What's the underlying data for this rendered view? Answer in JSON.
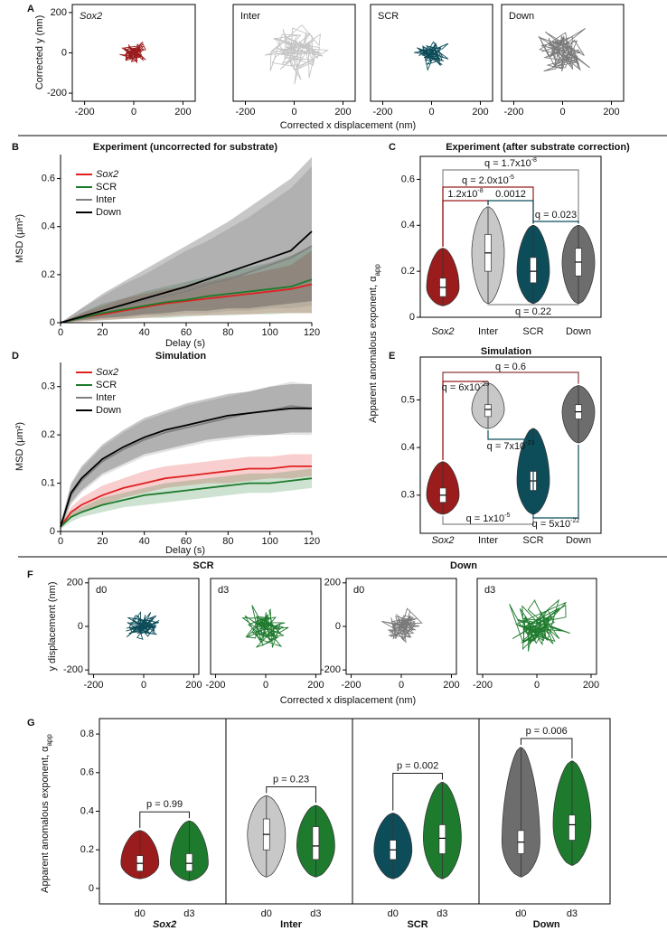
{
  "chart_data": [
    {
      "type": "trajectory",
      "panel": "A",
      "xlabel": "Corrected x displacement (nm)",
      "ylabel": "Corrected y (nm)",
      "xlim": [
        -250,
        250
      ],
      "ylim": [
        -240,
        240
      ],
      "xticks": [
        -200,
        0,
        200
      ],
      "yticks": [
        -200,
        0,
        200
      ],
      "panels": [
        {
          "label": "Sox2",
          "italic": true,
          "label_color": "#9b1c1c",
          "color": "#9b1c1c",
          "spread": 35
        },
        {
          "label": "Inter",
          "label_color": "#111111",
          "color": "#c4c4c4",
          "spread": 100
        },
        {
          "label": "SCR",
          "label_color": "#0d4d5a",
          "color": "#0d4d5a",
          "spread": 50
        },
        {
          "label": "Down",
          "label_color": "#111111",
          "color": "#7a7a7a",
          "spread": 75
        }
      ]
    },
    {
      "type": "line",
      "panel": "B",
      "title": "Experiment (uncorrected for substrate)",
      "xlabel": "Delay (s)",
      "ylabel": "MSD (μm²)",
      "xlim": [
        0,
        120
      ],
      "ylim": [
        0,
        0.7
      ],
      "xticks": [
        0,
        20,
        40,
        60,
        80,
        100,
        120
      ],
      "yticks": [
        0,
        0.2,
        0.4,
        0.6
      ],
      "x": [
        0,
        10,
        20,
        30,
        40,
        50,
        60,
        70,
        80,
        90,
        100,
        110,
        120
      ],
      "series": [
        {
          "name": "Sox2",
          "italic": true,
          "color": "#e02020",
          "values": [
            0,
            0.02,
            0.035,
            0.05,
            0.065,
            0.08,
            0.09,
            0.1,
            0.11,
            0.12,
            0.13,
            0.14,
            0.16
          ],
          "lower": [
            0,
            0.005,
            0.01,
            0.015,
            0.02,
            0.025,
            0.03,
            0.03,
            0.035,
            0.035,
            0.04,
            0.04,
            0.04
          ],
          "upper": [
            0,
            0.04,
            0.07,
            0.1,
            0.12,
            0.14,
            0.15,
            0.17,
            0.19,
            0.2,
            0.22,
            0.24,
            0.3
          ]
        },
        {
          "name": "SCR",
          "color": "#1e7a2d",
          "values": [
            0,
            0.02,
            0.04,
            0.055,
            0.07,
            0.085,
            0.095,
            0.11,
            0.12,
            0.13,
            0.14,
            0.15,
            0.18
          ],
          "lower": [
            0,
            0.005,
            0.01,
            0.015,
            0.02,
            0.02,
            0.025,
            0.03,
            0.03,
            0.035,
            0.035,
            0.04,
            0.04
          ],
          "upper": [
            0,
            0.04,
            0.08,
            0.1,
            0.13,
            0.15,
            0.17,
            0.19,
            0.21,
            0.23,
            0.25,
            0.28,
            0.32
          ]
        },
        {
          "name": "Inter",
          "color": "#808080",
          "values": [
            0,
            0.025,
            0.05,
            0.07,
            0.09,
            0.11,
            0.13,
            0.16,
            0.18,
            0.21,
            0.24,
            0.27,
            0.32
          ],
          "lower": [
            0,
            0.01,
            0.015,
            0.02,
            0.03,
            0.03,
            0.04,
            0.04,
            0.05,
            0.05,
            0.06,
            0.06,
            0.07
          ],
          "upper": [
            0,
            0.06,
            0.11,
            0.16,
            0.2,
            0.25,
            0.3,
            0.34,
            0.39,
            0.44,
            0.5,
            0.56,
            0.65
          ]
        },
        {
          "name": "Down",
          "color": "#000000",
          "values": [
            0,
            0.025,
            0.05,
            0.075,
            0.1,
            0.125,
            0.15,
            0.18,
            0.21,
            0.24,
            0.27,
            0.3,
            0.38
          ],
          "lower": [
            0,
            0.01,
            0.02,
            0.025,
            0.035,
            0.04,
            0.05,
            0.05,
            0.06,
            0.06,
            0.07,
            0.08,
            0.09
          ],
          "upper": [
            0,
            0.06,
            0.12,
            0.17,
            0.22,
            0.27,
            0.32,
            0.37,
            0.42,
            0.48,
            0.54,
            0.6,
            0.69
          ]
        }
      ]
    },
    {
      "type": "violin",
      "panel": "C",
      "title": "Experiment (after substrate correction)",
      "ylabel": "Apparent anomalous exponent, α",
      "ylabel_sub": "app",
      "ylim": [
        0,
        0.7
      ],
      "yticks": [
        0,
        0.2,
        0.4,
        0.6
      ],
      "series": [
        {
          "name": "Sox2",
          "italic": true,
          "color": "#9b1c1c",
          "stats": {
            "min": 0.05,
            "q1": 0.09,
            "median": 0.13,
            "q3": 0.17,
            "max": 0.3
          }
        },
        {
          "name": "Inter",
          "color": "#c8c8c8",
          "stats": {
            "min": 0.06,
            "q1": 0.2,
            "median": 0.28,
            "q3": 0.36,
            "max": 0.48
          }
        },
        {
          "name": "SCR",
          "color": "#0d4d5a",
          "stats": {
            "min": 0.06,
            "q1": 0.15,
            "median": 0.2,
            "q3": 0.26,
            "max": 0.4
          }
        },
        {
          "name": "Down",
          "color": "#6d6d6d",
          "stats": {
            "min": 0.06,
            "q1": 0.18,
            "median": 0.24,
            "q3": 0.3,
            "max": 0.4
          }
        }
      ],
      "annotations": [
        {
          "text": "q = 1.7x10",
          "sup": "-8",
          "between": [
            "Sox2",
            "Down"
          ],
          "color": "#888888"
        },
        {
          "text": "q = 2.0x10",
          "sup": "-5",
          "between": [
            "Sox2",
            "SCR"
          ],
          "color": "#9b1c1c"
        },
        {
          "text": "1.2x10",
          "sup": "-8",
          "between": [
            "Sox2",
            "Inter"
          ],
          "color": "#9b1c1c"
        },
        {
          "text": "0.0012",
          "between": [
            "Inter",
            "SCR"
          ],
          "color": "#0d4d5a"
        },
        {
          "text": "q = 0.023",
          "between": [
            "SCR",
            "Down"
          ],
          "color": "#0d4d5a"
        },
        {
          "text": "q = 0.22",
          "between": [
            "Inter",
            "Down"
          ],
          "color": "#888888"
        }
      ]
    },
    {
      "type": "line",
      "panel": "D",
      "title": "Simulation",
      "xlabel": "Delay (s)",
      "ylabel": "MSD (μm²)",
      "xlim": [
        0,
        120
      ],
      "ylim": [
        0,
        0.35
      ],
      "xticks": [
        0,
        20,
        40,
        60,
        80,
        100,
        120
      ],
      "yticks": [
        0,
        0.1,
        0.2,
        0.3
      ],
      "x": [
        0,
        5,
        10,
        20,
        30,
        40,
        50,
        60,
        70,
        80,
        90,
        100,
        110,
        120
      ],
      "series": [
        {
          "name": "Sox2",
          "italic": true,
          "color": "#e02020",
          "values": [
            0.01,
            0.04,
            0.055,
            0.075,
            0.09,
            0.1,
            0.11,
            0.115,
            0.12,
            0.125,
            0.13,
            0.13,
            0.135,
            0.135
          ],
          "lower": [
            0.005,
            0.03,
            0.04,
            0.055,
            0.07,
            0.08,
            0.09,
            0.095,
            0.1,
            0.1,
            0.105,
            0.11,
            0.11,
            0.115
          ],
          "upper": [
            0.015,
            0.05,
            0.07,
            0.095,
            0.11,
            0.125,
            0.135,
            0.14,
            0.145,
            0.15,
            0.155,
            0.155,
            0.16,
            0.16
          ]
        },
        {
          "name": "SCR",
          "color": "#1e7a2d",
          "values": [
            0.01,
            0.03,
            0.04,
            0.055,
            0.065,
            0.075,
            0.08,
            0.085,
            0.09,
            0.095,
            0.1,
            0.1,
            0.105,
            0.11
          ],
          "lower": [
            0.005,
            0.02,
            0.03,
            0.04,
            0.05,
            0.055,
            0.06,
            0.065,
            0.07,
            0.075,
            0.08,
            0.08,
            0.085,
            0.09
          ],
          "upper": [
            0.015,
            0.04,
            0.05,
            0.07,
            0.08,
            0.09,
            0.1,
            0.105,
            0.11,
            0.115,
            0.12,
            0.12,
            0.125,
            0.13
          ]
        },
        {
          "name": "Inter",
          "color": "#808080",
          "values": [
            0.01,
            0.075,
            0.105,
            0.145,
            0.17,
            0.19,
            0.205,
            0.215,
            0.225,
            0.235,
            0.245,
            0.25,
            0.26,
            0.255
          ],
          "lower": [
            0.005,
            0.055,
            0.08,
            0.115,
            0.135,
            0.155,
            0.165,
            0.175,
            0.185,
            0.19,
            0.195,
            0.2,
            0.2,
            0.2
          ],
          "upper": [
            0.015,
            0.095,
            0.13,
            0.175,
            0.205,
            0.23,
            0.245,
            0.26,
            0.27,
            0.28,
            0.29,
            0.3,
            0.31,
            0.305
          ]
        },
        {
          "name": "Down",
          "color": "#000000",
          "values": [
            0.01,
            0.08,
            0.11,
            0.15,
            0.175,
            0.195,
            0.21,
            0.22,
            0.23,
            0.24,
            0.245,
            0.25,
            0.255,
            0.255
          ],
          "lower": [
            0.005,
            0.06,
            0.085,
            0.12,
            0.14,
            0.16,
            0.17,
            0.18,
            0.19,
            0.195,
            0.2,
            0.2,
            0.205,
            0.205
          ],
          "upper": [
            0.015,
            0.1,
            0.135,
            0.18,
            0.21,
            0.235,
            0.25,
            0.265,
            0.275,
            0.285,
            0.29,
            0.3,
            0.305,
            0.305
          ]
        }
      ]
    },
    {
      "type": "violin",
      "panel": "E",
      "title": "Simulation",
      "ylim": [
        0.22,
        0.59
      ],
      "yticks": [
        0.3,
        0.4,
        0.5
      ],
      "series": [
        {
          "name": "Sox2",
          "italic": true,
          "color": "#9b1c1c",
          "stats": {
            "min": 0.26,
            "q1": 0.285,
            "median": 0.3,
            "q3": 0.315,
            "max": 0.37
          }
        },
        {
          "name": "Inter",
          "color": "#c8c8c8",
          "stats": {
            "min": 0.44,
            "q1": 0.465,
            "median": 0.48,
            "q3": 0.49,
            "max": 0.535
          }
        },
        {
          "name": "SCR",
          "color": "#0d4d5a",
          "stats": {
            "min": 0.26,
            "q1": 0.31,
            "median": 0.33,
            "q3": 0.35,
            "max": 0.44
          }
        },
        {
          "name": "Down",
          "color": "#6d6d6d",
          "stats": {
            "min": 0.41,
            "q1": 0.46,
            "median": 0.475,
            "q3": 0.49,
            "max": 0.53
          }
        }
      ],
      "annotations": [
        {
          "text": "q = 0.6",
          "between": [
            "Sox2",
            "Down"
          ],
          "color": "#8a3a3a"
        },
        {
          "text": "q = 6x10",
          "sup": "-23",
          "between": [
            "Sox2",
            "Inter"
          ],
          "color": "#9b1c1c"
        },
        {
          "text": "q = 7x10",
          "sup": "-23",
          "between": [
            "Inter",
            "SCR"
          ],
          "color": "#0d4d5a"
        },
        {
          "text": "q = 1x10",
          "sup": "-5",
          "between": [
            "Sox2",
            "SCR"
          ],
          "color": "#888888"
        },
        {
          "text": "q = 5x10",
          "sup": "-22",
          "between": [
            "SCR",
            "Down"
          ],
          "color": "#0d4d5a"
        }
      ]
    },
    {
      "type": "trajectory",
      "panel": "F",
      "titles": [
        "SCR",
        "Down"
      ],
      "xlabel": "Corrected x displacement (nm)",
      "ylabel": "y displacement (nm)",
      "xlim": [
        -220,
        220
      ],
      "ylim": [
        -220,
        220
      ],
      "xticks": [
        -200,
        0,
        200
      ],
      "yticks": [
        -200,
        0,
        200
      ],
      "panels": [
        {
          "label": "d0",
          "label_color": "#0d4d5a",
          "color": "#0d4d5a",
          "spread": 50
        },
        {
          "label": "d3",
          "label_color": "#0d4d5a",
          "color": "#1e7a2d",
          "spread": 70
        },
        {
          "label": "d0",
          "label_color": "#111111",
          "color": "#7a7a7a",
          "spread": 55
        },
        {
          "label": "d3",
          "label_color": "#0d4d5a",
          "color": "#1e7a2d",
          "spread": 85
        }
      ]
    },
    {
      "type": "grouped-violin",
      "panel": "G",
      "ylabel": "Apparent anomalous exponent, α",
      "ylabel_sub": "app",
      "ylim": [
        -0.08,
        0.88
      ],
      "yticks": [
        0,
        0.2,
        0.4,
        0.6,
        0.8
      ],
      "groups": [
        {
          "name": "Sox2",
          "italic": true,
          "annotation": "p = 0.99",
          "series": [
            {
              "name": "d0",
              "color": "#9b1c1c",
              "stats": {
                "min": 0.05,
                "q1": 0.09,
                "median": 0.13,
                "q3": 0.17,
                "max": 0.3
              }
            },
            {
              "name": "d3",
              "color": "#1e7a2d",
              "stats": {
                "min": 0.04,
                "q1": 0.09,
                "median": 0.13,
                "q3": 0.18,
                "max": 0.35
              }
            }
          ]
        },
        {
          "name": "Inter",
          "annotation": "p = 0.23",
          "series": [
            {
              "name": "d0",
              "color": "#c8c8c8",
              "stats": {
                "min": 0.06,
                "q1": 0.2,
                "median": 0.28,
                "q3": 0.36,
                "max": 0.48
              }
            },
            {
              "name": "d3",
              "color": "#1e7a2d",
              "stats": {
                "min": 0.06,
                "q1": 0.15,
                "median": 0.22,
                "q3": 0.32,
                "max": 0.43
              }
            }
          ]
        },
        {
          "name": "SCR",
          "annotation": "p = 0.002",
          "series": [
            {
              "name": "d0",
              "color": "#0d4d5a",
              "stats": {
                "min": 0.05,
                "q1": 0.15,
                "median": 0.2,
                "q3": 0.25,
                "max": 0.39
              }
            },
            {
              "name": "d3",
              "color": "#1e7a2d",
              "stats": {
                "min": 0.05,
                "q1": 0.18,
                "median": 0.26,
                "q3": 0.33,
                "max": 0.55
              }
            }
          ]
        },
        {
          "name": "Down",
          "annotation": "p = 0.006",
          "series": [
            {
              "name": "d0",
              "color": "#6d6d6d",
              "stats": {
                "min": 0.06,
                "q1": 0.18,
                "median": 0.24,
                "q3": 0.3,
                "max": 0.73
              }
            },
            {
              "name": "d3",
              "color": "#1e7a2d",
              "stats": {
                "min": 0.12,
                "q1": 0.25,
                "median": 0.33,
                "q3": 0.38,
                "max": 0.66
              }
            }
          ]
        }
      ]
    }
  ]
}
